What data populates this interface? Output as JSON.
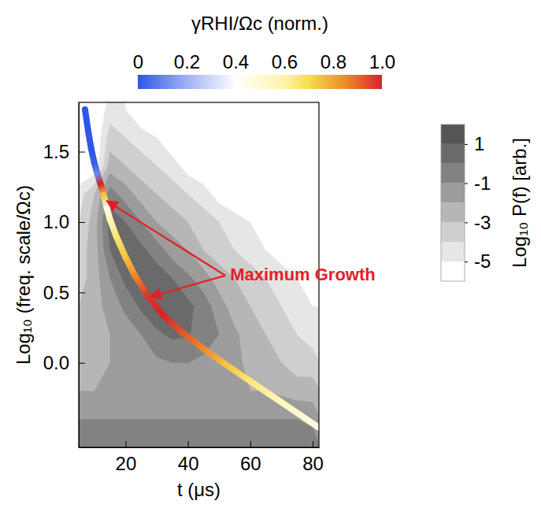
{
  "chart_data": {
    "type": "contour",
    "x_label": "t (μs)",
    "y_label": "Log₁₀ (freq. scale/Ωc)",
    "xlim": [
      5,
      82
    ],
    "ylim": [
      -0.6,
      1.85
    ],
    "xticks": [
      20,
      40,
      60,
      80
    ],
    "yticks": [
      {
        "value": 0,
        "label": "0.0"
      },
      0.5,
      {
        "value": 1,
        "label": "1.0"
      },
      1.5
    ],
    "field": {
      "x": [
        5,
        10,
        15,
        20,
        25,
        30,
        35,
        40,
        45,
        50,
        55,
        60,
        65,
        70,
        75,
        80
      ],
      "y": [
        1.8,
        1.6,
        1.4,
        1.2,
        1.0,
        0.8,
        0.6,
        0.4,
        0.2,
        0.0,
        -0.2,
        -0.4,
        -0.6
      ],
      "values": [
        [
          -6,
          -6,
          -4.5,
          -5,
          -6,
          -6,
          -6,
          -6,
          -6,
          -6,
          -6,
          -6,
          -6,
          -6,
          -6,
          -6
        ],
        [
          -6,
          -6,
          -3.5,
          -4,
          -4.5,
          -5,
          -6,
          -6,
          -6,
          -6,
          -6,
          -6,
          -6,
          -6,
          -6,
          -6
        ],
        [
          -6,
          -6,
          -2.5,
          -3,
          -3.5,
          -4,
          -4.5,
          -5.5,
          -6,
          -6,
          -6,
          -6,
          -6,
          -6,
          -6,
          -6
        ],
        [
          -4.5,
          -3,
          -0.5,
          -1.5,
          -2.5,
          -3,
          -3.5,
          -4,
          -4.5,
          -5.5,
          -6,
          -6,
          -6,
          -6,
          -6,
          -6
        ],
        [
          -4,
          -2.5,
          0.5,
          0,
          -1,
          -2,
          -2.5,
          -3,
          -3.5,
          -4,
          -4.5,
          -5,
          -5.5,
          -6,
          -6,
          -6
        ],
        [
          -3.5,
          -2.5,
          0,
          0.6,
          0.3,
          -0.5,
          -1.5,
          -2,
          -3,
          -3.5,
          -4,
          -4.5,
          -5,
          -5.5,
          -6,
          -6
        ],
        [
          -3.5,
          -2.5,
          -1,
          0.3,
          0.8,
          0.6,
          0,
          -0.8,
          -1.5,
          -2.5,
          -3,
          -3.5,
          -4,
          -4.5,
          -5,
          -5.5
        ],
        [
          -3,
          -2.5,
          -1.5,
          -0.8,
          0.2,
          0.8,
          0.6,
          0.3,
          -0.5,
          -1.5,
          -2.5,
          -3,
          -3.5,
          -4,
          -4.5,
          -5
        ],
        [
          -3,
          -2.5,
          -2,
          -1.5,
          -1,
          -0.2,
          0.2,
          0.1,
          -0.5,
          -1,
          -1.8,
          -2.5,
          -3,
          -3.5,
          -4,
          -4.5
        ],
        [
          -2.5,
          -2.5,
          -2,
          -2,
          -1.5,
          -1.2,
          -1,
          -1,
          -1.2,
          -1.5,
          -1.8,
          -2.2,
          -2.5,
          -3,
          -3.5,
          -3.5
        ],
        [
          -2,
          -2,
          -2,
          -2,
          -2,
          -2,
          -2,
          -2,
          -2,
          -2,
          -2,
          -2,
          -2,
          -2.2,
          -2.5,
          -2.5
        ],
        [
          -1,
          -1,
          -1,
          -1,
          -1,
          -1,
          -1,
          -1,
          -1,
          -1,
          -1,
          -1,
          -1,
          -1,
          -1,
          -1.2
        ],
        [
          -0.5,
          -0.5,
          -0.5,
          -0.5,
          -0.5,
          -0.5,
          -0.5,
          -0.5,
          -0.5,
          -0.5,
          -0.5,
          -0.5,
          -0.5,
          -0.5,
          -0.5,
          -0.5
        ]
      ]
    },
    "colorbar": {
      "label": "Log₁₀ P(f) [arb.]",
      "range": [
        -6,
        2
      ],
      "ticks": [
        1,
        -1,
        -3,
        -5
      ],
      "levels": [
        -6,
        -5,
        -4,
        -3,
        -2,
        -1,
        0,
        1,
        2
      ]
    },
    "curve": {
      "type": "line",
      "x": [
        7,
        8,
        9,
        10,
        11,
        12,
        13,
        14,
        15,
        17,
        20,
        23,
        27,
        32,
        38,
        45,
        52,
        60,
        70,
        82
      ],
      "y": [
        1.8,
        1.65,
        1.52,
        1.42,
        1.34,
        1.27,
        1.19,
        1.1,
        1.02,
        0.9,
        0.75,
        0.62,
        0.48,
        0.34,
        0.22,
        0.1,
        -0.01,
        -0.13,
        -0.28,
        -0.46
      ],
      "gamma": [
        0,
        0,
        0,
        0.02,
        0.1,
        1.0,
        0.75,
        0.45,
        0.55,
        0.65,
        0.75,
        0.85,
        0.97,
        1.0,
        0.93,
        0.85,
        0.75,
        0.65,
        0.55,
        0.45
      ]
    },
    "curve_colorbar": {
      "label": "γRHI/Ωc (norm.)",
      "range": [
        0,
        1
      ],
      "ticks": [
        0,
        0.2,
        0.4,
        0.6,
        0.8,
        {
          "value": 1,
          "label": "1.0"
        }
      ]
    },
    "annotation": {
      "text": "Maximum Growth",
      "x": 52,
      "y": 0.62,
      "arrow_x": [
        14,
        28
      ],
      "arrow_y": [
        1.15,
        0.47
      ]
    }
  }
}
